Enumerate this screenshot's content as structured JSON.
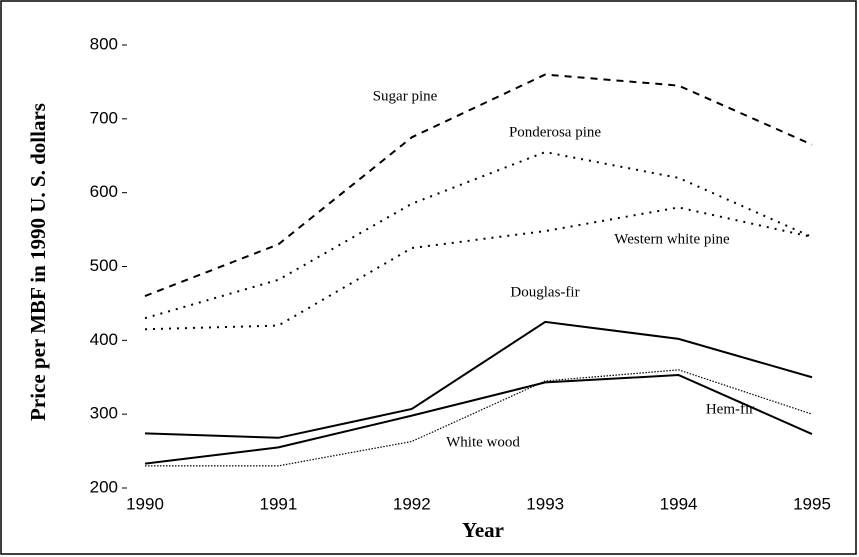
{
  "chart_data": {
    "type": "line",
    "x_label": "Year",
    "y_label": "Price  per MBF in 1990 U. S. dollars",
    "x": [
      1990,
      1991,
      1992,
      1993,
      1994,
      1995
    ],
    "xlim": [
      1990,
      1995
    ],
    "xticks": [
      1990,
      1991,
      1992,
      1993,
      1994,
      1995
    ],
    "ylim": [
      200,
      800
    ],
    "yticks": [
      200,
      300,
      400,
      500,
      600,
      700,
      800
    ],
    "series": [
      {
        "name": "Sugar pine",
        "color": "#000000",
        "style": "dashed",
        "values": [
          460,
          530,
          675,
          760,
          745,
          665
        ]
      },
      {
        "name": "Ponderosa pine",
        "color": "#000000",
        "style": "dotted",
        "values": [
          430,
          482,
          585,
          655,
          620,
          540
        ]
      },
      {
        "name": "Western white pine",
        "color": "#000000",
        "style": "dotted",
        "values": [
          415,
          420,
          525,
          548,
          580,
          540
        ]
      },
      {
        "name": "Douglas-fir",
        "color": "#000000",
        "style": "solid",
        "values": [
          274,
          268,
          307,
          425,
          402,
          350
        ]
      },
      {
        "name": "Hem-fir",
        "color": "#000000",
        "style": "solid",
        "values": [
          233,
          255,
          298,
          343,
          353,
          273
        ]
      },
      {
        "name": "White wood",
        "color": "#000000",
        "style": "fine",
        "values": [
          230,
          230,
          263,
          345,
          360,
          300
        ]
      }
    ]
  }
}
